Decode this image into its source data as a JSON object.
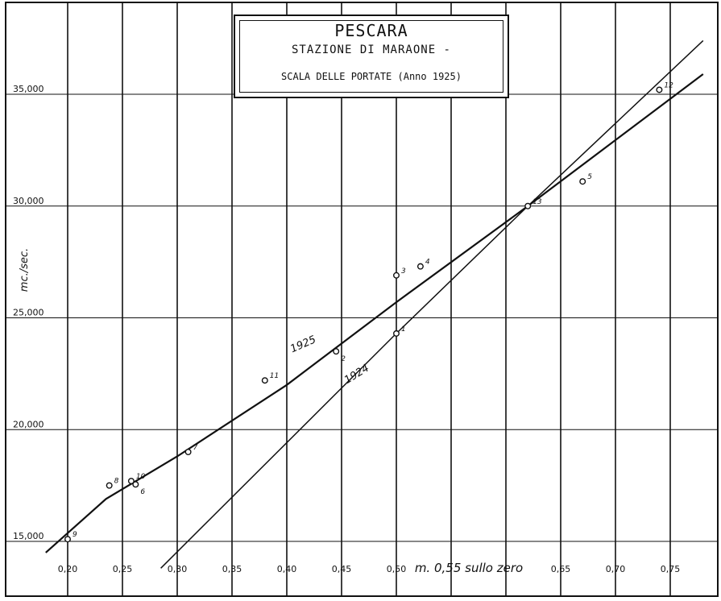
{
  "chart_data": {
    "type": "scatter",
    "title": "PESCARA",
    "subtitle": "STAZIONE DI MARAONE -",
    "subtitle2": "SCALA DELLE PORTATE (Anno 1925)",
    "xlabel": "m. 0,55 sullo zero",
    "ylabel": "mc./sec.",
    "xlim": [
      0.18,
      0.78
    ],
    "ylim": [
      14500,
      37500
    ],
    "x_ticks": [
      {
        "v": 0.2,
        "label": "0,20"
      },
      {
        "v": 0.25,
        "label": "0,25"
      },
      {
        "v": 0.3,
        "label": "0,30"
      },
      {
        "v": 0.35,
        "label": "0,35"
      },
      {
        "v": 0.4,
        "label": "0,40"
      },
      {
        "v": 0.45,
        "label": "0,45"
      },
      {
        "v": 0.5,
        "label": "0,50"
      },
      {
        "v": 0.65,
        "label": "0,65"
      },
      {
        "v": 0.7,
        "label": "0,70"
      },
      {
        "v": 0.75,
        "label": "0,75"
      }
    ],
    "y_ticks": [
      {
        "v": 15000,
        "label": "15,000"
      },
      {
        "v": 20000,
        "label": "20,000"
      },
      {
        "v": 25000,
        "label": "25,000"
      },
      {
        "v": 30000,
        "label": "30,000"
      },
      {
        "v": 35000,
        "label": "35,000"
      }
    ],
    "grid": true,
    "points": [
      {
        "x": 0.2,
        "y": 15100,
        "label": "9"
      },
      {
        "x": 0.238,
        "y": 17500,
        "label": "8"
      },
      {
        "x": 0.258,
        "y": 17700,
        "label": "10"
      },
      {
        "x": 0.262,
        "y": 17550,
        "label": "6"
      },
      {
        "x": 0.31,
        "y": 19000,
        "label": "7"
      },
      {
        "x": 0.38,
        "y": 22200,
        "label": "11"
      },
      {
        "x": 0.445,
        "y": 23500,
        "label": "2"
      },
      {
        "x": 0.5,
        "y": 26900,
        "label": "3"
      },
      {
        "x": 0.5,
        "y": 24300,
        "label": "1"
      },
      {
        "x": 0.522,
        "y": 27300,
        "label": "4"
      },
      {
        "x": 0.62,
        "y": 30000,
        "label": "13"
      },
      {
        "x": 0.67,
        "y": 31100,
        "label": "5"
      },
      {
        "x": 0.74,
        "y": 35200,
        "label": "12"
      }
    ],
    "series": [
      {
        "name": "1925",
        "x": [
          0.18,
          0.235,
          0.3,
          0.4,
          0.5,
          0.62,
          0.78
        ],
        "y": [
          14500,
          16900,
          18800,
          22000,
          25700,
          30000,
          35900
        ]
      },
      {
        "name": "1924",
        "x": [
          0.285,
          0.5,
          0.62,
          0.78
        ],
        "y": [
          13800,
          24300,
          30000,
          37400
        ]
      }
    ]
  }
}
